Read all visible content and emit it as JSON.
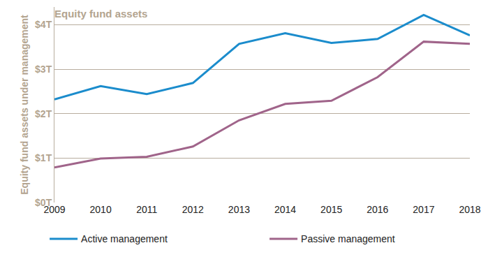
{
  "chart_data": {
    "type": "line",
    "title": "Equity fund assets",
    "y_label": "Equity fund assets under management",
    "categories": [
      "2009",
      "2010",
      "2011",
      "2012",
      "2013",
      "2014",
      "2015",
      "2016",
      "2017",
      "2018"
    ],
    "series": [
      {
        "name": "Active management",
        "color": "#1b8ccc",
        "values": [
          2.32,
          2.62,
          2.44,
          2.69,
          3.57,
          3.81,
          3.59,
          3.68,
          4.22,
          3.76
        ]
      },
      {
        "name": "Passive management",
        "color": "#a0648a",
        "values": [
          0.79,
          0.99,
          1.03,
          1.26,
          1.85,
          2.22,
          2.29,
          2.82,
          3.62,
          3.57
        ]
      }
    ],
    "ylim": [
      0,
      4.4
    ],
    "yticks": [
      {
        "value": 0,
        "label": "$0T"
      },
      {
        "value": 1,
        "label": "$1T"
      },
      {
        "value": 2,
        "label": "$2T"
      },
      {
        "value": 3,
        "label": "$3T"
      },
      {
        "value": 4,
        "label": "$4T"
      }
    ],
    "grid": true,
    "legend": "bottom"
  }
}
